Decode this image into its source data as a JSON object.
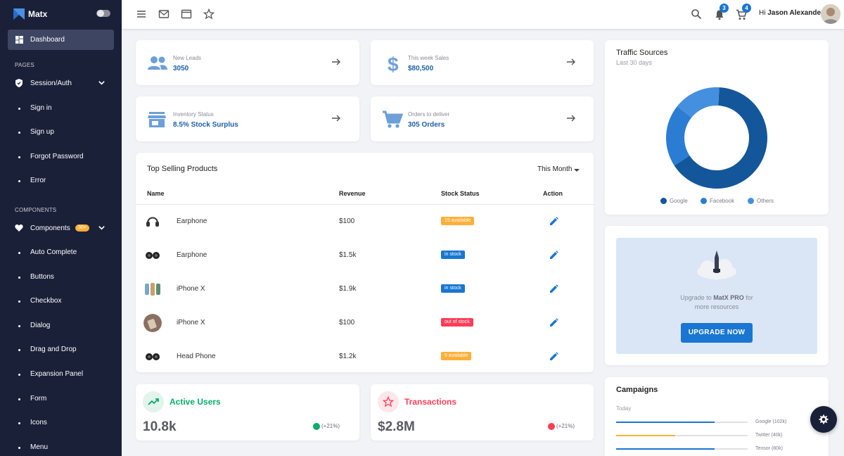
{
  "brand": {
    "name": "Matx"
  },
  "sidebar": {
    "active": {
      "label": "Dashboard",
      "icon": "dashboard-icon"
    },
    "section_pages": "PAGES",
    "session": {
      "label": "Session/Auth",
      "icon": "shield-icon"
    },
    "session_items": [
      {
        "label": "Sign in"
      },
      {
        "label": "Sign up"
      },
      {
        "label": "Forgot Password"
      },
      {
        "label": "Error"
      }
    ],
    "section_components": "COMPONENTS",
    "components": {
      "label": "Components",
      "badge": "30+",
      "icon": "heart-icon"
    },
    "component_items": [
      {
        "label": "Auto Complete"
      },
      {
        "label": "Buttons"
      },
      {
        "label": "Checkbox"
      },
      {
        "label": "Dialog"
      },
      {
        "label": "Drag and Drop"
      },
      {
        "label": "Expansion Panel"
      },
      {
        "label": "Form"
      },
      {
        "label": "Icons"
      },
      {
        "label": "Menu"
      }
    ]
  },
  "topbar": {
    "notifications_count": "3",
    "cart_count": "4",
    "greeting": "Hi",
    "user_name": "Jason Alexander"
  },
  "stats": [
    {
      "label": "New Leads",
      "value": "3050",
      "icon": "group-icon"
    },
    {
      "label": "This week Sales",
      "value": "$80,500",
      "icon": "dollar-icon"
    },
    {
      "label": "Inventory Status",
      "value": "8.5% Stock Surplus",
      "icon": "store-icon"
    },
    {
      "label": "Orders to deliver",
      "value": "305 Orders",
      "icon": "cart-icon"
    }
  ],
  "top_selling": {
    "title": "Top Selling Products",
    "filter": "This Month",
    "columns": [
      "Name",
      "Revenue",
      "Stock Status",
      "Action"
    ],
    "rows": [
      {
        "name": "Earphone",
        "revenue": "$100",
        "status": "15 available",
        "status_color": "#ffaf38"
      },
      {
        "name": "Earphone",
        "revenue": "$1.5k",
        "status": "in stock",
        "status_color": "#1976d2"
      },
      {
        "name": "iPhone X",
        "revenue": "$1.9k",
        "status": "in stock",
        "status_color": "#1976d2"
      },
      {
        "name": "iPhone X",
        "revenue": "$100",
        "status": "out of stock",
        "status_color": "#ff3d57"
      },
      {
        "name": "Head Phone",
        "revenue": "$1.2k",
        "status": "5 available",
        "status_color": "#ffaf38"
      }
    ]
  },
  "kpis": [
    {
      "title": "Active Users",
      "value": "10.8k",
      "change": "(+21%)",
      "color": "#08ad6c"
    },
    {
      "title": "Transactions",
      "value": "$2.8M",
      "change": "(+21%)",
      "color": "#ff3d57"
    }
  ],
  "traffic": {
    "title": "Traffic Sources",
    "subtitle": "Last 30 days"
  },
  "chart_data": {
    "type": "pie",
    "categories": [
      "Google",
      "Facebook",
      "Others"
    ],
    "values": [
      65,
      20,
      15
    ],
    "colors": [
      "#135699",
      "#2b7dd3",
      "#4590de"
    ]
  },
  "promo": {
    "text_pre": "Upgrade to",
    "brand": "MatX PRO",
    "text_post": "for",
    "line2": "more resources",
    "button": "UPGRADE NOW"
  },
  "campaigns": {
    "title": "Campaigns",
    "period": "Today",
    "items": [
      {
        "label": "Google (102k)",
        "progress": 0.75,
        "color": "#1976d2"
      },
      {
        "label": "Twitter (40k)",
        "progress": 0.45,
        "color": "#ffaf38"
      },
      {
        "label": "Tensor (80k)",
        "progress": 0.75,
        "color": "#1976d2"
      }
    ]
  }
}
